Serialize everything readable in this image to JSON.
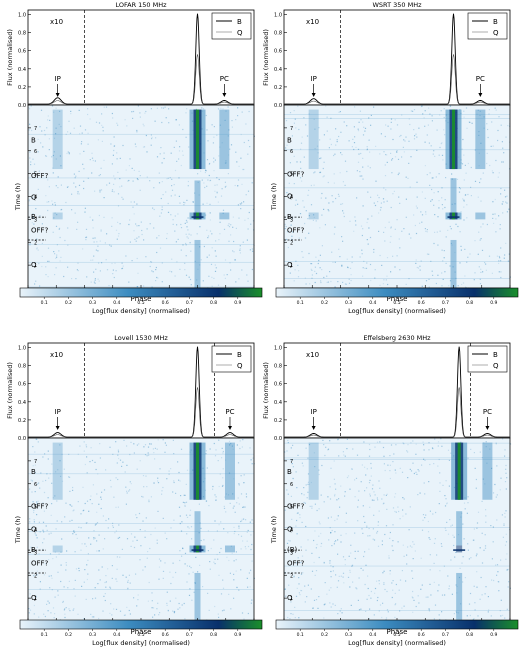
{
  "panels_common": {
    "profile_ylabel": "Flux (normalised)",
    "wf_ylabel": "Time (h)",
    "xlabel": "Phase",
    "cbar_label": "Log[flux density] (normalised)",
    "phase_ticks": [
      "0.1",
      "0.2",
      "0.3",
      "0.4",
      "0.5",
      "0.6",
      "0.7",
      "0.8",
      "0.9"
    ],
    "flux_ticks": [
      "0.0",
      "0.2",
      "0.4",
      "0.6",
      "0.8",
      "1.0"
    ],
    "cbar_ticks": [
      "0.1",
      "0.2",
      "0.3",
      "0.4",
      "0.5",
      "0.6",
      "0.7",
      "0.8",
      "0.9"
    ],
    "colors": {
      "light": "#e9f3fa",
      "mid": "#3c8cc0",
      "dark": "#08306b",
      "peak": "#1a8f2a",
      "profile_line": "#000000"
    }
  },
  "chart_data": [
    {
      "type": "line",
      "title": "LOFAR 150 MHz",
      "xlim": [
        0.1,
        0.9
      ],
      "ylim": [
        0.0,
        1.05
      ],
      "multiplier_label": "x10",
      "legend": [
        "B",
        "Q"
      ],
      "annotations": [
        "IP",
        "PC"
      ],
      "dashed_phase_lines": [
        0.3
      ],
      "profile_components": [
        {
          "label": "IP",
          "phase": 0.205,
          "height": 0.07
        },
        {
          "label": "main",
          "phase": 0.7,
          "height": 1.0
        },
        {
          "label": "PC",
          "phase": 0.795,
          "height": 0.04
        }
      ],
      "waterfall": {
        "ylim_h": [
          0,
          8
        ],
        "time_ticks": [
          "1",
          "2",
          "3",
          "4",
          "5",
          "6",
          "7"
        ],
        "states": [
          {
            "label": "B",
            "t_start": 5.2,
            "t_end": 7.8
          },
          {
            "label": "OFF?",
            "t_start": 4.7,
            "t_end": 5.2
          },
          {
            "label": "Q",
            "t_start": 3.3,
            "t_end": 4.7
          },
          {
            "label": "B",
            "t_start": 3.0,
            "t_end": 3.3
          },
          {
            "label": "OFF?",
            "t_start": 2.1,
            "t_end": 3.0
          },
          {
            "label": "Q",
            "t_start": 0,
            "t_end": 2.1
          }
        ],
        "state_marker_labels": [
          "B",
          "OFF?",
          "Q",
          "B",
          "OFF?",
          "Q"
        ],
        "dashed_time_lines": [
          3.1,
          2.1
        ]
      }
    },
    {
      "type": "line",
      "title": "WSRT 350 MHz",
      "xlim": [
        0.1,
        0.9
      ],
      "ylim": [
        0.0,
        1.05
      ],
      "multiplier_label": "x10",
      "legend": [
        "B",
        "Q"
      ],
      "annotations": [
        "IP",
        "PC"
      ],
      "dashed_phase_lines": [
        0.3
      ],
      "profile_components": [
        {
          "label": "IP",
          "phase": 0.205,
          "height": 0.06
        },
        {
          "label": "main",
          "phase": 0.7,
          "height": 1.0
        },
        {
          "label": "PC",
          "phase": 0.795,
          "height": 0.04
        }
      ],
      "waterfall": {
        "ylim_h": [
          0,
          8
        ],
        "time_ticks": [
          "1",
          "2",
          "3",
          "4",
          "5",
          "6",
          "7"
        ],
        "states": [
          {
            "label": "B",
            "t_start": 5.2,
            "t_end": 7.8
          },
          {
            "label": "OFF?",
            "t_start": 4.8,
            "t_end": 5.2
          },
          {
            "label": "Q",
            "t_start": 3.3,
            "t_end": 4.8
          },
          {
            "label": "B",
            "t_start": 3.0,
            "t_end": 3.3
          },
          {
            "label": "OFF?",
            "t_start": 2.1,
            "t_end": 3.0
          },
          {
            "label": "Q",
            "t_start": 0,
            "t_end": 2.1
          }
        ],
        "state_marker_labels": [
          "B",
          "OFF?",
          "Q",
          "B",
          "OFF?",
          "Q"
        ],
        "dashed_time_lines": [
          3.1,
          2.1
        ]
      }
    },
    {
      "type": "line",
      "title": "Lovell 1530 MHz",
      "xlim": [
        0.1,
        0.9
      ],
      "ylim": [
        0.0,
        1.05
      ],
      "multiplier_label": "x10",
      "legend": [
        "B",
        "Q"
      ],
      "annotations": [
        "IP",
        "PC"
      ],
      "dashed_phase_lines": [
        0.3,
        0.76
      ],
      "profile_components": [
        {
          "label": "IP",
          "phase": 0.205,
          "height": 0.05
        },
        {
          "label": "main",
          "phase": 0.7,
          "height": 1.0
        },
        {
          "label": "PC",
          "phase": 0.815,
          "height": 0.05
        }
      ],
      "waterfall": {
        "ylim_h": [
          0,
          8
        ],
        "time_ticks": [
          "1",
          "2",
          "3",
          "4",
          "5",
          "6",
          "7"
        ],
        "states": [
          {
            "label": "B",
            "t_start": 5.3,
            "t_end": 7.8
          },
          {
            "label": "OFF?",
            "t_start": 4.8,
            "t_end": 5.3
          },
          {
            "label": "Q",
            "t_start": 3.3,
            "t_end": 4.8
          },
          {
            "label": "B",
            "t_start": 3.0,
            "t_end": 3.3
          },
          {
            "label": "OFF?",
            "t_start": 2.1,
            "t_end": 3.0
          },
          {
            "label": "Q",
            "t_start": 0,
            "t_end": 2.1
          }
        ],
        "state_marker_labels": [
          "B",
          "OFF?",
          "Q",
          "B",
          "OFF?",
          "Q"
        ],
        "dashed_time_lines": [
          3.1,
          2.1
        ]
      }
    },
    {
      "type": "line",
      "title": "Effelsberg 2630 MHz",
      "xlim": [
        0.1,
        0.9
      ],
      "ylim": [
        0.0,
        1.05
      ],
      "multiplier_label": "x10",
      "legend": [
        "B",
        "Q"
      ],
      "annotations": [
        "IP",
        "PC"
      ],
      "dashed_phase_lines": [
        0.3,
        0.76
      ],
      "profile_components": [
        {
          "label": "IP",
          "phase": 0.205,
          "height": 0.04
        },
        {
          "label": "main",
          "phase": 0.72,
          "height": 1.0
        },
        {
          "label": "PC",
          "phase": 0.82,
          "height": 0.04
        }
      ],
      "waterfall": {
        "ylim_h": [
          0,
          8
        ],
        "time_ticks": [
          "1",
          "2",
          "3",
          "4",
          "5",
          "6",
          "7"
        ],
        "states": [
          {
            "label": "B",
            "t_start": 5.3,
            "t_end": 7.8
          },
          {
            "label": "OFF?",
            "t_start": 4.8,
            "t_end": 5.3
          },
          {
            "label": "Q",
            "t_start": 3.3,
            "t_end": 4.8
          },
          {
            "label": "(B)",
            "t_start": 3.0,
            "t_end": 3.3
          },
          {
            "label": "OFF?",
            "t_start": 2.1,
            "t_end": 3.0
          },
          {
            "label": "Q",
            "t_start": 0,
            "t_end": 2.1
          }
        ],
        "state_marker_labels": [
          "B",
          "OFF?",
          "Q",
          "(B)",
          "OFF?",
          "Q"
        ],
        "dashed_time_lines": [
          3.1,
          2.1
        ]
      }
    }
  ]
}
